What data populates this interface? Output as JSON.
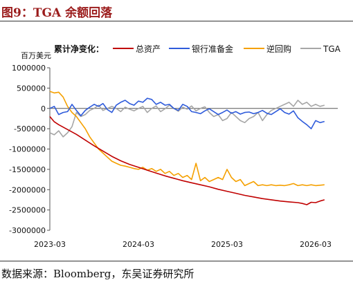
{
  "header": {
    "title": "图9：TGA 余额回落"
  },
  "footer": {
    "source": "数据来源：Bloomberg，东吴证券研究所"
  },
  "chart_data": {
    "type": "line",
    "unit": "百万美元",
    "legend_title": "累计净变化：",
    "legend_position": "top",
    "grid": false,
    "xlim": [
      2023.0,
      2026.25
    ],
    "ylim": [
      -3000000,
      1000000
    ],
    "y_ticks": [
      1000000,
      500000,
      0,
      -500000,
      -1000000,
      -1500000,
      -2000000,
      -2500000,
      -3000000
    ],
    "y_tick_labels": [
      "1000000",
      "500000",
      "0",
      "-500000",
      "-1000000",
      "-1500000",
      "-2000000",
      "-2500000",
      "-3000000"
    ],
    "x_ticks": [
      2023.0,
      2024.0,
      2025.0,
      2026.0
    ],
    "x_tick_labels": [
      "2023-03",
      "2024-03",
      "2025-03",
      "2026-03"
    ],
    "series": [
      {
        "name": "总资产",
        "color": "#c00000",
        "x": [
          2023.0,
          2023.05,
          2023.1,
          2023.2,
          2023.3,
          2023.4,
          2023.5,
          2023.6,
          2023.7,
          2023.8,
          2023.9,
          2024.0,
          2024.1,
          2024.2,
          2024.3,
          2024.4,
          2024.5,
          2024.6,
          2024.7,
          2024.8,
          2024.9,
          2025.0,
          2025.1,
          2025.2,
          2025.3,
          2025.4,
          2025.5,
          2025.6,
          2025.7,
          2025.8,
          2025.85,
          2025.9,
          2025.95,
          2026.0,
          2026.05,
          2026.1
        ],
        "values": [
          -200000,
          -330000,
          -400000,
          -520000,
          -640000,
          -780000,
          -920000,
          -1050000,
          -1180000,
          -1290000,
          -1380000,
          -1450000,
          -1520000,
          -1590000,
          -1660000,
          -1720000,
          -1780000,
          -1830000,
          -1880000,
          -1930000,
          -1990000,
          -2040000,
          -2090000,
          -2140000,
          -2180000,
          -2220000,
          -2250000,
          -2280000,
          -2300000,
          -2320000,
          -2340000,
          -2370000,
          -2310000,
          -2320000,
          -2280000,
          -2250000
        ]
      },
      {
        "name": "银行准备金",
        "color": "#2e5bdb",
        "x": [
          2023.0,
          2023.05,
          2023.1,
          2023.15,
          2023.2,
          2023.25,
          2023.3,
          2023.35,
          2023.4,
          2023.45,
          2023.5,
          2023.55,
          2023.6,
          2023.65,
          2023.7,
          2023.75,
          2023.8,
          2023.85,
          2023.9,
          2023.95,
          2024.0,
          2024.05,
          2024.1,
          2024.15,
          2024.2,
          2024.25,
          2024.3,
          2024.35,
          2024.4,
          2024.45,
          2024.5,
          2024.55,
          2024.6,
          2024.65,
          2024.7,
          2024.75,
          2024.8,
          2024.85,
          2024.9,
          2024.95,
          2025.0,
          2025.05,
          2025.1,
          2025.15,
          2025.2,
          2025.25,
          2025.3,
          2025.35,
          2025.4,
          2025.45,
          2025.5,
          2025.55,
          2025.6,
          2025.65,
          2025.7,
          2025.75,
          2025.8,
          2025.85,
          2025.9,
          2025.95,
          2026.0,
          2026.05,
          2026.1
        ],
        "values": [
          0,
          50000,
          -150000,
          -100000,
          -80000,
          100000,
          -50000,
          -180000,
          -50000,
          30000,
          100000,
          50000,
          120000,
          -30000,
          -100000,
          80000,
          150000,
          200000,
          120000,
          80000,
          180000,
          150000,
          250000,
          220000,
          100000,
          150000,
          80000,
          100000,
          0,
          -50000,
          100000,
          50000,
          -80000,
          -100000,
          -130000,
          -60000,
          -10000,
          -80000,
          -150000,
          -100000,
          -40000,
          -120000,
          -80000,
          -140000,
          -100000,
          -90000,
          -130000,
          -100000,
          -50000,
          -120000,
          -150000,
          -80000,
          -10000,
          -100000,
          -140000,
          -60000,
          -230000,
          -320000,
          -400000,
          -500000,
          -300000,
          -350000,
          -320000
        ]
      },
      {
        "name": "逆回购",
        "color": "#f5a000",
        "x": [
          2023.0,
          2023.05,
          2023.1,
          2023.15,
          2023.2,
          2023.25,
          2023.3,
          2023.35,
          2023.4,
          2023.45,
          2023.5,
          2023.55,
          2023.6,
          2023.65,
          2023.7,
          2023.75,
          2023.8,
          2023.85,
          2023.9,
          2023.95,
          2024.0,
          2024.05,
          2024.1,
          2024.15,
          2024.2,
          2024.25,
          2024.3,
          2024.35,
          2024.4,
          2024.45,
          2024.5,
          2024.55,
          2024.6,
          2024.65,
          2024.7,
          2024.75,
          2024.8,
          2024.85,
          2024.9,
          2024.95,
          2025.0,
          2025.05,
          2025.1,
          2025.15,
          2025.2,
          2025.25,
          2025.3,
          2025.35,
          2025.4,
          2025.45,
          2025.5,
          2025.55,
          2025.6,
          2025.65,
          2025.7,
          2025.75,
          2025.8,
          2025.85,
          2025.9,
          2025.95,
          2026.0,
          2026.05,
          2026.1
        ],
        "values": [
          420000,
          380000,
          400000,
          280000,
          50000,
          -100000,
          -200000,
          -350000,
          -500000,
          -700000,
          -850000,
          -1000000,
          -1100000,
          -1200000,
          -1300000,
          -1350000,
          -1400000,
          -1420000,
          -1450000,
          -1480000,
          -1500000,
          -1450000,
          -1520000,
          -1480000,
          -1550000,
          -1500000,
          -1600000,
          -1550000,
          -1650000,
          -1600000,
          -1700000,
          -1650000,
          -1750000,
          -1350000,
          -1780000,
          -1700000,
          -1800000,
          -1750000,
          -1700000,
          -1750000,
          -1500000,
          -1700000,
          -1800000,
          -1750000,
          -1900000,
          -1850000,
          -1800000,
          -1900000,
          -1880000,
          -1900000,
          -1880000,
          -1900000,
          -1890000,
          -1900000,
          -1880000,
          -1850000,
          -1900000,
          -1880000,
          -1900000,
          -1880000,
          -1900000,
          -1890000,
          -1880000
        ]
      },
      {
        "name": "TGA",
        "color": "#a6a6a6",
        "x": [
          2023.0,
          2023.05,
          2023.1,
          2023.15,
          2023.2,
          2023.25,
          2023.3,
          2023.35,
          2023.4,
          2023.45,
          2023.5,
          2023.55,
          2023.6,
          2023.65,
          2023.7,
          2023.75,
          2023.8,
          2023.85,
          2023.9,
          2023.95,
          2024.0,
          2024.05,
          2024.1,
          2024.15,
          2024.2,
          2024.25,
          2024.3,
          2024.35,
          2024.4,
          2024.45,
          2024.5,
          2024.55,
          2024.6,
          2024.65,
          2024.7,
          2024.75,
          2024.8,
          2024.85,
          2024.9,
          2024.95,
          2025.0,
          2025.05,
          2025.1,
          2025.15,
          2025.2,
          2025.25,
          2025.3,
          2025.35,
          2025.4,
          2025.45,
          2025.5,
          2025.55,
          2025.6,
          2025.65,
          2025.7,
          2025.75,
          2025.8,
          2025.85,
          2025.9,
          2025.95,
          2026.0,
          2026.05,
          2026.1
        ],
        "values": [
          -600000,
          -650000,
          -550000,
          -700000,
          -600000,
          -450000,
          -100000,
          -200000,
          -150000,
          -50000,
          0,
          80000,
          -50000,
          0,
          50000,
          0,
          -80000,
          30000,
          -20000,
          -60000,
          0,
          50000,
          -100000,
          0,
          60000,
          -80000,
          -10000,
          80000,
          0,
          -70000,
          30000,
          -20000,
          60000,
          -60000,
          0,
          40000,
          -100000,
          -200000,
          -150000,
          -300000,
          -250000,
          -100000,
          -200000,
          -300000,
          -350000,
          -250000,
          -200000,
          -100000,
          -300000,
          -150000,
          -50000,
          0,
          50000,
          100000,
          150000,
          50000,
          200000,
          100000,
          150000,
          50000,
          100000,
          50000,
          80000
        ]
      }
    ]
  }
}
